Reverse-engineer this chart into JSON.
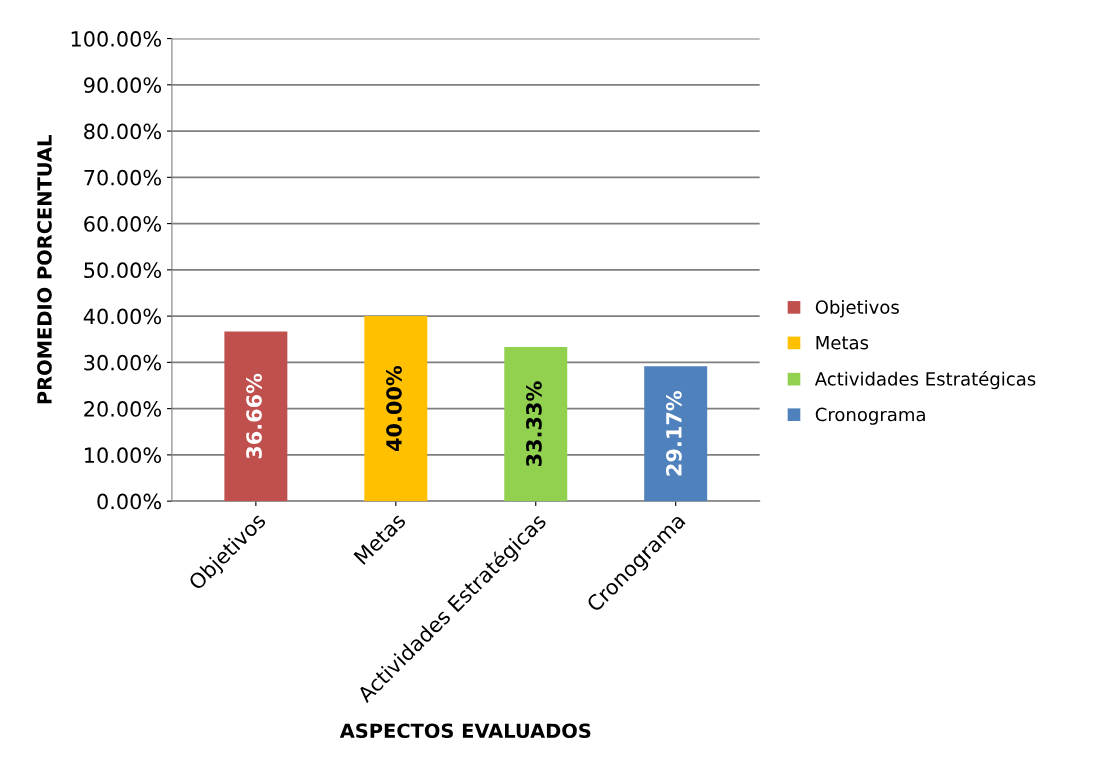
{
  "chart_data": {
    "type": "bar",
    "xlabel": "ASPECTOS EVALUADOS",
    "ylabel": "PROMEDIO PORCENTUAL",
    "categories": [
      "Objetivos",
      "Metas",
      "Actividades Estratégicas",
      "Cronograma"
    ],
    "series": [
      {
        "name": "Objetivos",
        "color": "#c0504d",
        "values": [
          36.66,
          null,
          null,
          null
        ],
        "value_labels": [
          "36.66%",
          null,
          null,
          null
        ]
      },
      {
        "name": "Metas",
        "color": "#ffc000",
        "values": [
          null,
          40.0,
          null,
          null
        ],
        "value_labels": [
          null,
          "40.00%",
          null,
          null
        ]
      },
      {
        "name": "Actividades Estratégicas",
        "color": "#92d050",
        "values": [
          null,
          null,
          33.33,
          null
        ],
        "value_labels": [
          null,
          null,
          "33.33%",
          null
        ]
      },
      {
        "name": "Cronograma",
        "color": "#4f81bd",
        "values": [
          null,
          null,
          null,
          29.17
        ],
        "value_labels": [
          null,
          null,
          null,
          "29.17%"
        ]
      }
    ],
    "ylim": [
      0,
      100
    ],
    "yticks": [
      {
        "value": 0,
        "label": "0.00%"
      },
      {
        "value": 10,
        "label": "10.00%"
      },
      {
        "value": 20,
        "label": "20.00%"
      },
      {
        "value": 30,
        "label": "30.00%"
      },
      {
        "value": 40,
        "label": "40.00%"
      },
      {
        "value": 50,
        "label": "50.00%"
      },
      {
        "value": 60,
        "label": "60.00%"
      },
      {
        "value": 70,
        "label": "70.00%"
      },
      {
        "value": 80,
        "label": "80.00%"
      },
      {
        "value": 90,
        "label": "90.00%"
      },
      {
        "value": 100,
        "label": "100.00%"
      }
    ],
    "grid": "y",
    "legend": "right"
  }
}
